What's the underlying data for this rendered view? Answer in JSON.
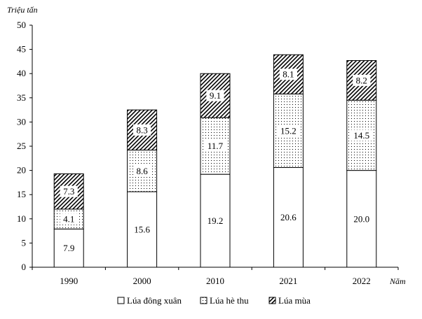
{
  "chart_data": {
    "type": "bar",
    "stacked": true,
    "title": "",
    "ylabel": "Triệu tấn",
    "xlabel": "Năm",
    "ylim": [
      0,
      50
    ],
    "yticks": [
      0,
      5,
      10,
      15,
      20,
      25,
      30,
      35,
      40,
      45,
      50
    ],
    "categories": [
      "1990",
      "2000",
      "2010",
      "2021",
      "2022"
    ],
    "series": [
      {
        "name": "Lúa đông xuân",
        "values": [
          7.9,
          15.6,
          19.2,
          20.6,
          20.0
        ],
        "fill": "white"
      },
      {
        "name": "Lúa hè thu",
        "values": [
          4.1,
          8.6,
          11.7,
          15.2,
          14.5
        ],
        "fill": "dots"
      },
      {
        "name": "Lúa mùa",
        "values": [
          7.3,
          8.3,
          9.1,
          8.1,
          8.2
        ],
        "fill": "hatch"
      }
    ],
    "grid": false,
    "legend_position": "bottom",
    "colors": {
      "stroke": "#000000",
      "background": "#ffffff"
    }
  }
}
